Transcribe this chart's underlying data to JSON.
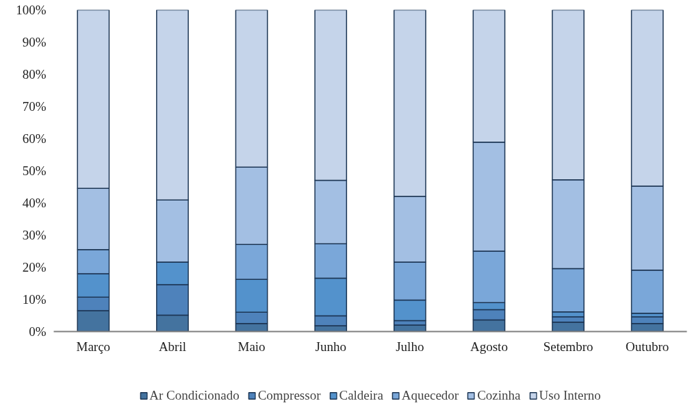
{
  "chart_data": {
    "type": "bar",
    "stacked": true,
    "categories": [
      "Março",
      "Abril",
      "Maio",
      "Junho",
      "Julho",
      "Agosto",
      "Setembro",
      "Outubro"
    ],
    "series": [
      {
        "name": "Ar Condicionado",
        "color": "#44739f",
        "values": [
          6.5,
          5.1,
          2.5,
          1.8,
          2.0,
          3.6,
          2.9,
          2.5
        ]
      },
      {
        "name": "Compressor",
        "color": "#4e82bb",
        "values": [
          4.2,
          9.5,
          3.5,
          3.1,
          1.4,
          3.2,
          1.7,
          2.1
        ]
      },
      {
        "name": "Caldeira",
        "color": "#5392cc",
        "values": [
          7.3,
          7.0,
          10.2,
          11.7,
          6.4,
          2.2,
          1.5,
          1.1
        ]
      },
      {
        "name": "Aquecedor",
        "color": "#7aa7d9",
        "values": [
          7.5,
          null,
          10.9,
          10.7,
          11.8,
          16.0,
          13.5,
          13.4
        ]
      },
      {
        "name": "Cozinha",
        "color": "#a3bfe3",
        "values": [
          19.0,
          19.3,
          24.0,
          19.7,
          20.4,
          33.9,
          27.6,
          26.1
        ]
      },
      {
        "name": "Uso Interno",
        "color": "#c5d4ea",
        "values": [
          55.5,
          59.1,
          48.9,
          53.0,
          58.0,
          41.1,
          52.8,
          54.8
        ]
      }
    ],
    "ylim": [
      0,
      100
    ],
    "yticks": [
      {
        "value": 0,
        "label": "0%"
      },
      {
        "value": 10,
        "label": "10%"
      },
      {
        "value": 20,
        "label": "20%"
      },
      {
        "value": 30,
        "label": "30%"
      },
      {
        "value": 40,
        "label": "40%"
      },
      {
        "value": 50,
        "label": "50%"
      },
      {
        "value": 60,
        "label": "60%"
      },
      {
        "value": 70,
        "label": "70%"
      },
      {
        "value": 80,
        "label": "80%"
      },
      {
        "value": 90,
        "label": "90%"
      },
      {
        "value": 100,
        "label": "100%"
      }
    ],
    "grid": false,
    "legend": "bottom"
  }
}
